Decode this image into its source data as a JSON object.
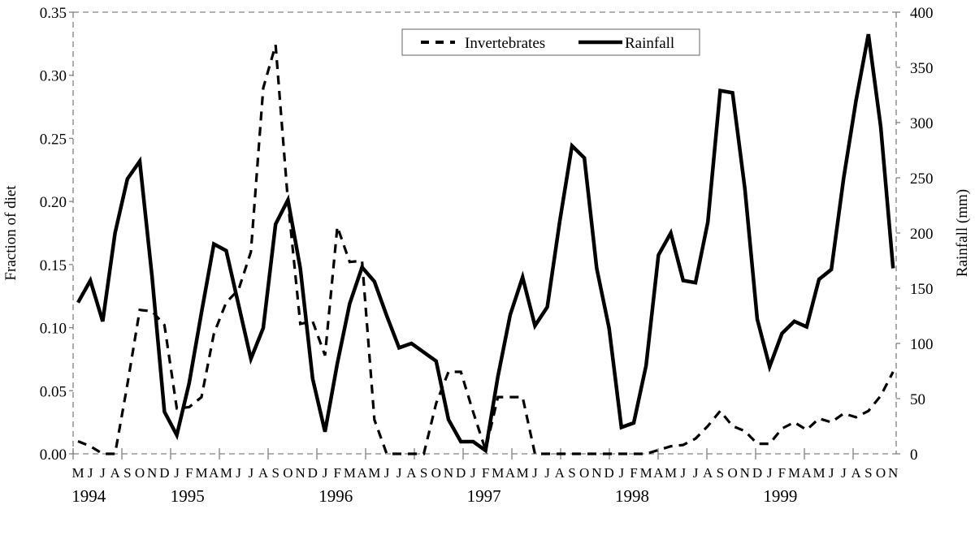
{
  "chart_data": {
    "type": "line",
    "title": "",
    "xlabel": "",
    "ylabel_left": "Fraction of diet",
    "ylabel_right": "Rainfall (mm)",
    "ylim_left": [
      0,
      0.35
    ],
    "ylim_right": [
      0,
      400
    ],
    "left_ticks": [
      "0.00",
      "0.05",
      "0.10",
      "0.15",
      "0.20",
      "0.25",
      "0.30",
      "0.35"
    ],
    "right_ticks": [
      "0",
      "50",
      "100",
      "150",
      "200",
      "250",
      "300",
      "350",
      "400"
    ],
    "grid": false,
    "legend_position": "top-center",
    "month_labels": [
      "M",
      "J",
      "J",
      "A",
      "S",
      "O",
      "N",
      "D",
      "J",
      "F",
      "M",
      "A",
      "M",
      "J",
      "J",
      "A",
      "S",
      "O",
      "N",
      "D",
      "J",
      "F",
      "M",
      "A",
      "M",
      "J",
      "J",
      "A",
      "S",
      "O",
      "N",
      "D",
      "J",
      "F",
      "M",
      "A",
      "M",
      "J",
      "J",
      "A",
      "S",
      "O",
      "N",
      "D",
      "J",
      "F",
      "M",
      "A",
      "M",
      "J",
      "J",
      "A",
      "S",
      "O",
      "N",
      "D",
      "J",
      "F",
      "M",
      "A",
      "M",
      "J",
      "J",
      "A",
      "S",
      "O",
      "N"
    ],
    "year_labels": [
      {
        "label": "1994",
        "month_index": 1
      },
      {
        "label": "1995",
        "month_index": 9
      },
      {
        "label": "1996",
        "month_index": 21
      },
      {
        "label": "1997",
        "month_index": 33
      },
      {
        "label": "1998",
        "month_index": 45
      },
      {
        "label": "1999",
        "month_index": 57
      }
    ],
    "x_range": "May 1994 - Nov 1999 (monthly)",
    "series": [
      {
        "name": "Invertebrates",
        "axis": "left",
        "style": "dashed",
        "values": [
          0.01,
          0.006,
          0.0,
          0.0,
          0.055,
          0.114,
          0.113,
          0.102,
          0.036,
          0.037,
          0.045,
          0.095,
          0.12,
          0.13,
          0.16,
          0.29,
          0.324,
          0.2,
          0.103,
          0.105,
          0.078,
          0.18,
          0.152,
          0.153,
          0.027,
          0.0,
          0.0,
          0.0,
          0.0,
          0.04,
          0.065,
          0.065,
          0.033,
          0.003,
          0.045,
          0.045,
          0.045,
          0.0,
          0.0,
          0.0,
          0.0,
          0.0,
          0.0,
          0.0,
          0.0,
          0.0,
          0.0,
          0.003,
          0.006,
          0.007,
          0.012,
          0.022,
          0.034,
          0.022,
          0.018,
          0.008,
          0.008,
          0.02,
          0.025,
          0.019,
          0.028,
          0.025,
          0.032,
          0.029,
          0.034,
          0.046,
          0.065
        ]
      },
      {
        "name": "Rainfall",
        "axis": "right",
        "style": "solid",
        "values": [
          137,
          157,
          120,
          200,
          249,
          265,
          160,
          38,
          17,
          64,
          128,
          190,
          184,
          135,
          86,
          114,
          208,
          230,
          168,
          68,
          20,
          82,
          136,
          169,
          156,
          125,
          96,
          100,
          92,
          84,
          31,
          11,
          11,
          3,
          70,
          126,
          160,
          116,
          133,
          210,
          279,
          268,
          168,
          114,
          24,
          28,
          80,
          180,
          200,
          157,
          155,
          210,
          329,
          327,
          240,
          122,
          79,
          109,
          120,
          115,
          158,
          167,
          250,
          320,
          380,
          296,
          168
        ]
      }
    ]
  },
  "legend": {
    "items": [
      {
        "label": "Invertebrates",
        "style": "dashed"
      },
      {
        "label": "Rainfall",
        "style": "solid"
      }
    ]
  },
  "colors": {
    "line": "#000000",
    "frame": "#7f7f7f",
    "background": "#ffffff"
  }
}
